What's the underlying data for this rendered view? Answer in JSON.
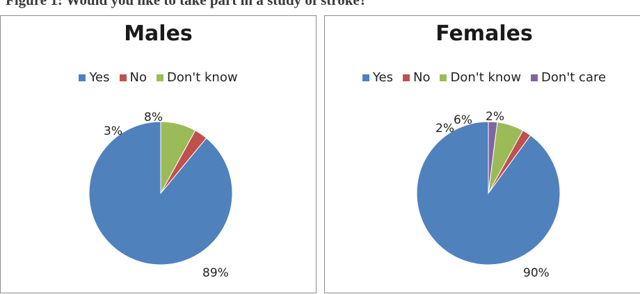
{
  "caption": "Figure 1: Would you like to take part in a study of stroke?",
  "chart_data": [
    {
      "type": "pie",
      "title": "Males",
      "legend_position": "top",
      "categories": [
        "Yes",
        "No",
        "Don't know"
      ],
      "values": [
        89,
        3,
        8
      ],
      "labels": [
        "89%",
        "3%",
        "8%"
      ],
      "colors": [
        "#4f81bd",
        "#c0504d",
        "#9bbb59"
      ]
    },
    {
      "type": "pie",
      "title": "Females",
      "legend_position": "top",
      "categories": [
        "Yes",
        "No",
        "Don't know",
        "Don't care"
      ],
      "values": [
        90,
        2,
        6,
        2
      ],
      "labels": [
        "90%",
        "2%",
        "6%",
        "2%"
      ],
      "colors": [
        "#4f81bd",
        "#c0504d",
        "#9bbb59",
        "#8064a2"
      ]
    }
  ]
}
